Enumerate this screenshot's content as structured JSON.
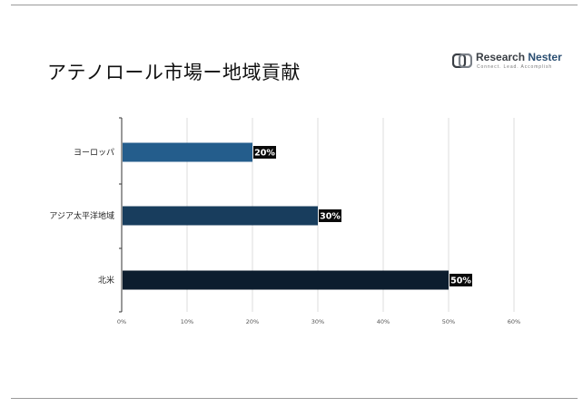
{
  "page": {
    "title": "アテノロール市場ー地域貢献"
  },
  "logo": {
    "name_part1": "Research",
    "name_part2": "Nester",
    "tagline": "Connect. Lead. Accomplish"
  },
  "colors": {
    "series": [
      "#245d8c",
      "#183d5d",
      "#0c1d2e"
    ],
    "label_bg": "#0a0a0a",
    "axis": "#333333",
    "grid": "#dcdcdc"
  },
  "chart_data": {
    "type": "bar",
    "orientation": "horizontal",
    "categories": [
      "ヨーロッパ",
      "アジア太平洋地域",
      "北米"
    ],
    "values": [
      20,
      30,
      50
    ],
    "value_labels": [
      "20%",
      "30%",
      "50%"
    ],
    "xlim": [
      0,
      60
    ],
    "xticks": [
      0,
      10,
      20,
      30,
      40,
      50,
      60
    ],
    "xtick_labels": [
      "0%",
      "10%",
      "20%",
      "30%",
      "40%",
      "50%",
      "60%"
    ],
    "grid": true,
    "legend": "none"
  }
}
